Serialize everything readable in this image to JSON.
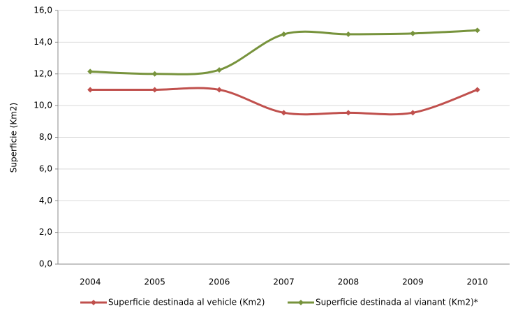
{
  "chart_data": {
    "type": "line",
    "y_label": "Superficie (Km2)",
    "categories": [
      "2004",
      "2005",
      "2006",
      "2007",
      "2008",
      "2009",
      "2010"
    ],
    "series": [
      {
        "name": "Superficie destinada al vehicle (Km2)",
        "color": "#c0504d",
        "values": [
          11.0,
          11.0,
          11.0,
          9.55,
          9.55,
          9.55,
          11.0
        ]
      },
      {
        "name": "Superficie destinada al vianant (Km2)*",
        "color": "#77933c",
        "values": [
          12.15,
          12.0,
          12.25,
          14.5,
          14.5,
          14.55,
          14.75
        ]
      }
    ],
    "ylim": [
      0,
      16
    ],
    "yticks": [
      {
        "value": 0,
        "label": "0,0"
      },
      {
        "value": 2,
        "label": "2,0"
      },
      {
        "value": 4,
        "label": "4,0"
      },
      {
        "value": 6,
        "label": "6,0"
      },
      {
        "value": 8,
        "label": "8,0"
      },
      {
        "value": 10,
        "label": "10,0"
      },
      {
        "value": 12,
        "label": "12,0"
      },
      {
        "value": 14,
        "label": "14,0"
      },
      {
        "value": 16,
        "label": "16,0"
      }
    ],
    "grid": true,
    "smooth": true,
    "legend": "bottom"
  }
}
